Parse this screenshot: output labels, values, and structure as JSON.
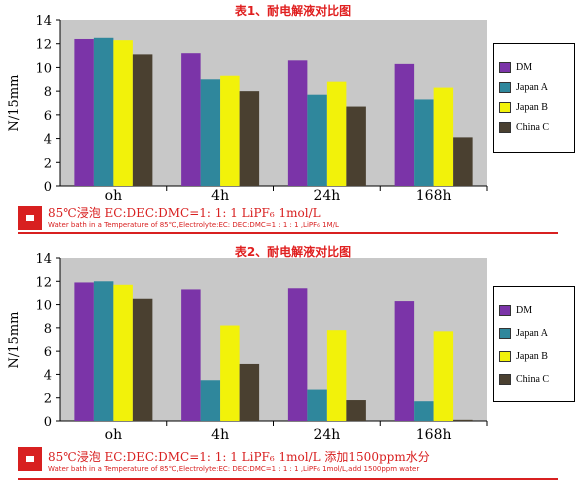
{
  "colors": {
    "DM": "#7b34a8",
    "Japan A": "#2f879c",
    "Japan B": "#f2f20a",
    "China C": "#4a4030",
    "plot_bg": "#c8c8c8",
    "accent": "#d82020"
  },
  "chart_data": [
    {
      "type": "bar",
      "title": "表1、耐电解液对比图",
      "ylabel": "N/15mm",
      "xlabel": "",
      "ylim": [
        0,
        14
      ],
      "yticks": [
        0,
        2,
        4,
        6,
        8,
        10,
        12,
        14
      ],
      "grid": false,
      "legend": "right",
      "categories": [
        "oh",
        "4h",
        "24h",
        "168h"
      ],
      "series": [
        {
          "name": "DM",
          "values": [
            12.4,
            11.2,
            10.6,
            10.3
          ]
        },
        {
          "name": "Japan A",
          "values": [
            12.5,
            9.0,
            7.7,
            7.3
          ]
        },
        {
          "name": "Japan B",
          "values": [
            12.3,
            9.3,
            8.8,
            8.3
          ]
        },
        {
          "name": "China C",
          "values": [
            11.1,
            8.0,
            6.7,
            4.1
          ]
        }
      ],
      "caption": {
        "main": "85℃浸泡 EC:DEC:DMC=1: 1: 1 LiPF₆ 1mol/L",
        "sub": "Water bath in a Temperature of 85℃,Electrolyte:EC: DEC:DMC=1 : 1 : 1 ,LiPF₆ 1M/L"
      }
    },
    {
      "type": "bar",
      "title": "表2、耐电解液对比图",
      "ylabel": "N/15mm",
      "xlabel": "",
      "ylim": [
        0,
        14
      ],
      "yticks": [
        0,
        2,
        4,
        6,
        8,
        10,
        12,
        14
      ],
      "grid": false,
      "legend": "right",
      "categories": [
        "oh",
        "4h",
        "24h",
        "168h"
      ],
      "series": [
        {
          "name": "DM",
          "values": [
            11.9,
            11.3,
            11.4,
            10.3
          ]
        },
        {
          "name": "Japan A",
          "values": [
            12.0,
            3.5,
            2.7,
            1.7
          ]
        },
        {
          "name": "Japan B",
          "values": [
            11.7,
            8.2,
            7.8,
            7.7
          ]
        },
        {
          "name": "China C",
          "values": [
            10.5,
            4.9,
            1.8,
            0.1
          ]
        }
      ],
      "caption": {
        "main": "85℃浸泡 EC:DEC:DMC=1: 1: 1 LiPF₆ 1mol/L 添加1500ppm水分",
        "sub": "Water bath in a Temperature of 85℃,Electrolyte:EC: DEC:DMC=1 : 1 : 1 ,LiPF₆ 1mol/L,add 1500ppm water"
      }
    }
  ]
}
